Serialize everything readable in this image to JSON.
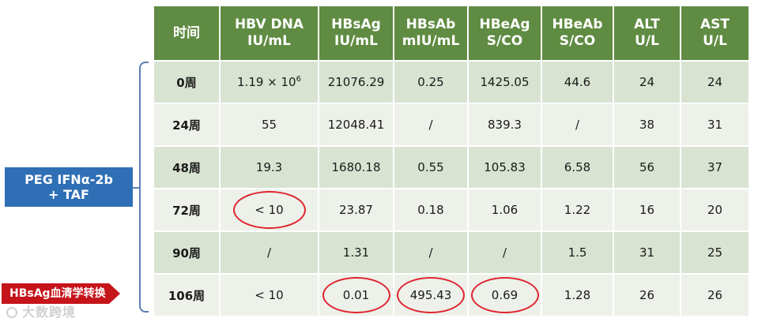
{
  "table": {
    "headers": [
      "时间",
      "HBV DNA\nIU/mL",
      "HBsAg\nIU/mL",
      "HBsAb\nmIU/mL",
      "HBeAg\nS/CO",
      "HBeAb\nS/CO",
      "ALT\nU/L",
      "AST\nU/L"
    ],
    "rows": [
      [
        "0周",
        "1.19 × 10",
        "21076.29",
        "0.25",
        "1425.05",
        "44.6",
        "24",
        "24"
      ],
      [
        "24周",
        "55",
        "12048.41",
        "/",
        "839.3",
        "/",
        "38",
        "31"
      ],
      [
        "48周",
        "19.3",
        "1680.18",
        "0.55",
        "105.83",
        "6.58",
        "56",
        "37"
      ],
      [
        "72周",
        "< 10",
        "23.87",
        "0.18",
        "1.06",
        "1.22",
        "16",
        "20"
      ],
      [
        "90周",
        "/",
        "1.31",
        "/",
        "/",
        "1.5",
        "31",
        "25"
      ],
      [
        "106周",
        "< 10",
        "0.01",
        "495.43",
        "0.69",
        "1.28",
        "26",
        "26"
      ]
    ],
    "row0_dna_exponent": "6"
  },
  "group_label": "PEG IFNα-2b\n+ TAF",
  "callout_label": "HBsAg血清学转换",
  "watermark": "大数跨境",
  "colors": {
    "header_bg": "#5f8b42",
    "row_odd": "#d9e3d2",
    "row_even": "#edf1ea",
    "highlight_circle": "#e0232e",
    "group_label_bg": "#2f6fb5",
    "callout_bg": "#c5141a"
  }
}
